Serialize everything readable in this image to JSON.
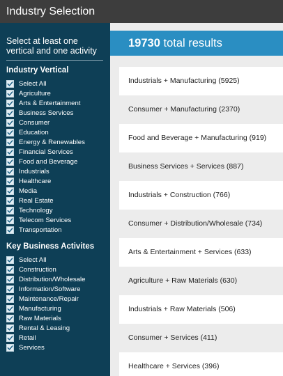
{
  "window": {
    "title": "Industry Selection"
  },
  "sidebar": {
    "instruction": "Select at least one vertical and one activity",
    "industry_vertical": {
      "heading": "Industry Vertical",
      "items": [
        {
          "label": "Select All",
          "checked": true
        },
        {
          "label": "Agriculture",
          "checked": true
        },
        {
          "label": "Arts & Entertainment",
          "checked": true
        },
        {
          "label": "Business Services",
          "checked": true
        },
        {
          "label": "Consumer",
          "checked": true
        },
        {
          "label": "Education",
          "checked": true
        },
        {
          "label": "Energy & Renewables",
          "checked": true
        },
        {
          "label": "Financial Services",
          "checked": true
        },
        {
          "label": "Food and Beverage",
          "checked": true
        },
        {
          "label": "Industrials",
          "checked": true
        },
        {
          "label": "Healthcare",
          "checked": true
        },
        {
          "label": "Media",
          "checked": true
        },
        {
          "label": "Real Estate",
          "checked": true
        },
        {
          "label": "Technology",
          "checked": true
        },
        {
          "label": "Telecom Services",
          "checked": true
        },
        {
          "label": "Transportation",
          "checked": true
        }
      ]
    },
    "business_activities": {
      "heading": "Key Business Activites",
      "items": [
        {
          "label": "Select All",
          "checked": true
        },
        {
          "label": "Construction",
          "checked": true
        },
        {
          "label": "Distribution/Wholesale",
          "checked": true
        },
        {
          "label": "Information/Software",
          "checked": true
        },
        {
          "label": "Maintenance/Repair",
          "checked": true
        },
        {
          "label": "Manufacturing",
          "checked": true
        },
        {
          "label": "Raw Materials",
          "checked": true
        },
        {
          "label": "Rental & Leasing",
          "checked": true
        },
        {
          "label": "Retail",
          "checked": true
        },
        {
          "label": "Services",
          "checked": true
        }
      ]
    }
  },
  "results": {
    "total_count": "19730",
    "total_label": "total results",
    "items": [
      "Industrials + Manufacturing (5925)",
      "Consumer + Manufacturing (2370)",
      "Food and Beverage + Manufacturing (919)",
      "Business Services + Services (887)",
      "Industrials + Construction (766)",
      "Consumer + Distribution/Wholesale (734)",
      "Arts & Entertainment + Services (633)",
      "Agriculture + Raw Materials (630)",
      "Industrials + Raw Materials (506)",
      "Consumer + Services (411)",
      "Healthcare + Services (396)"
    ]
  },
  "colors": {
    "titlebar": "#3d3d3d",
    "sidebar": "#0e3f56",
    "results_header": "#2a8ec2",
    "checkmark": "#1a5f85"
  }
}
